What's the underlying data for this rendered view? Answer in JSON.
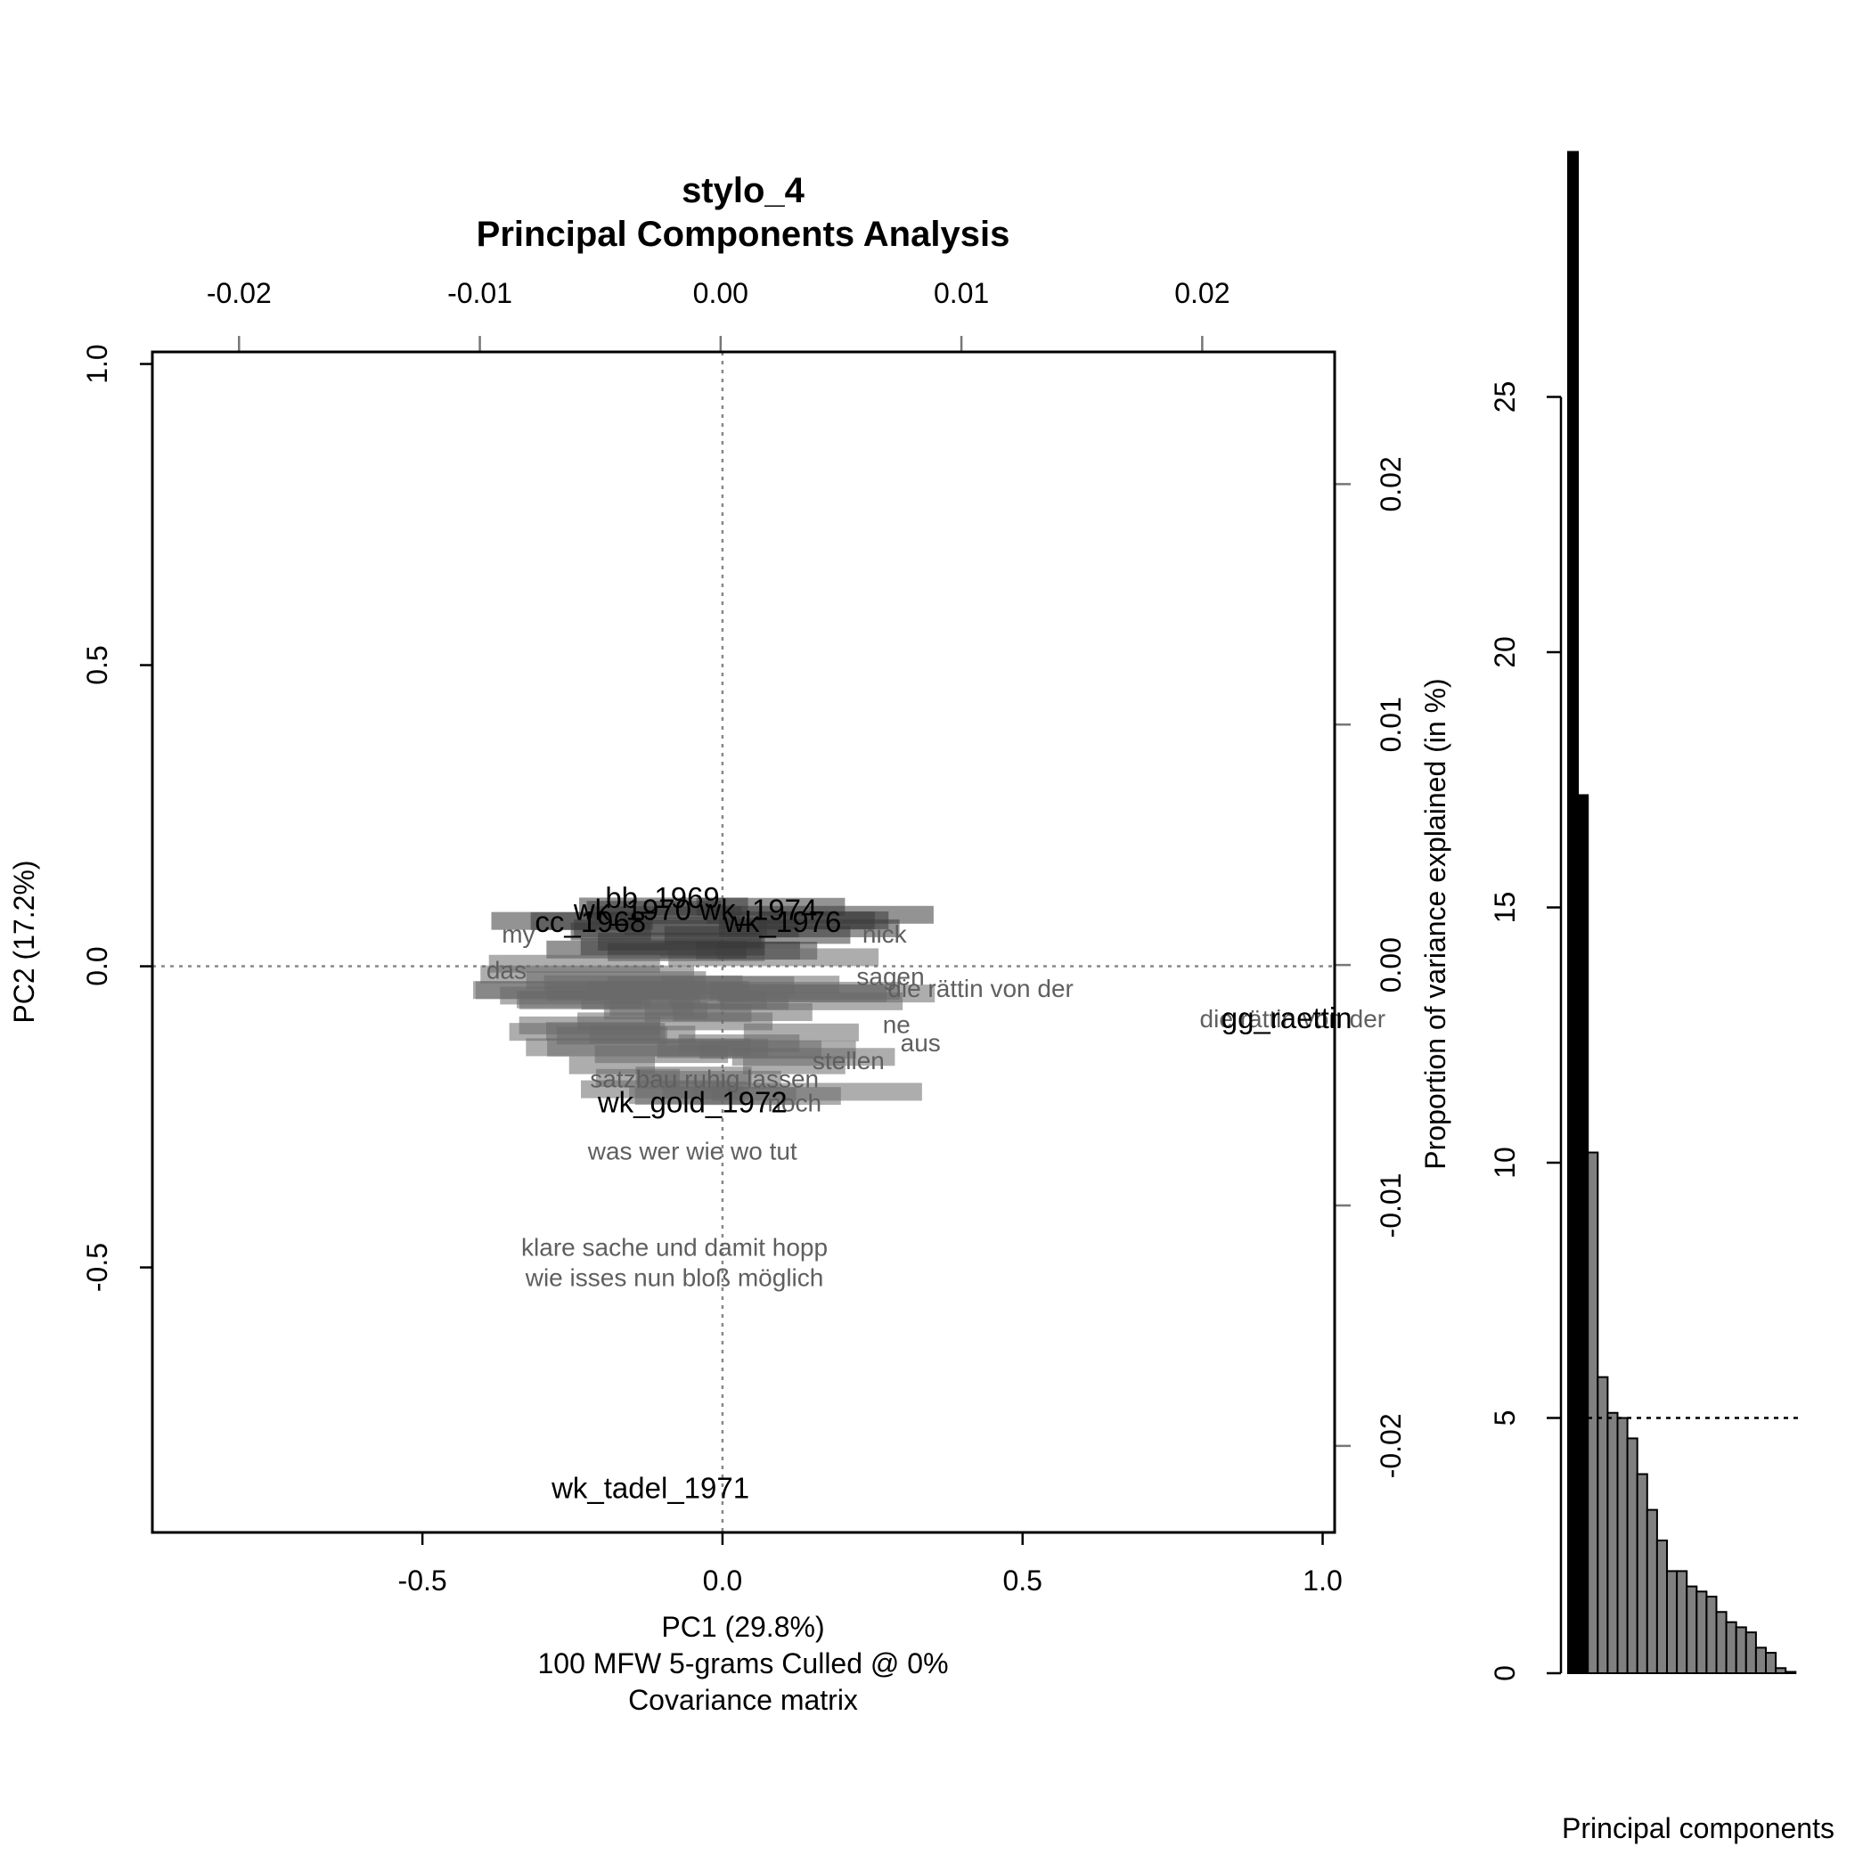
{
  "chart_data": [
    {
      "type": "scatter",
      "title": "stylo_4",
      "subtitle": "Principal Components Analysis",
      "xlabel": "PC1 (29.8%)",
      "ylabel": "PC2 (17.2%)",
      "caption_lines": [
        "100 MFW 5-grams Culled @ 0%",
        "Covariance matrix"
      ],
      "xlim": [
        -0.95,
        1.02
      ],
      "ylim": [
        -0.94,
        1.02
      ],
      "x_ticks": [
        "-0.5",
        "0.0",
        "0.5",
        "1.0"
      ],
      "x_tick_values": [
        -0.5,
        0.0,
        0.5,
        1.0
      ],
      "y_ticks": [
        "-0.5",
        "0.0",
        "0.5",
        "1.0"
      ],
      "y_tick_values": [
        -0.5,
        0.0,
        0.5,
        1.0
      ],
      "loadings_axis_top_ticks": [
        "-0.02",
        "-0.01",
        "0.00",
        "0.01",
        "0.02"
      ],
      "loadings_axis_top_values": [
        -0.02,
        -0.01,
        0.0,
        0.01,
        0.02
      ],
      "loadings_axis_right_ticks": [
        "-0.02",
        "-0.01",
        "0.00",
        "0.01",
        "0.02"
      ],
      "loadings_axis_right_values": [
        -0.02,
        -0.01,
        0.0,
        0.01,
        0.02
      ],
      "loadings_lim": [
        -0.0236,
        0.0255
      ],
      "reference_lines": {
        "x": 0,
        "y": 0
      },
      "documents": [
        {
          "label": "wk_gold_1972",
          "x": -0.05,
          "y": -0.23
        },
        {
          "label": "wk_tadel_1971",
          "x": -0.12,
          "y": -0.87
        },
        {
          "label": "gg_raettin",
          "x": 0.94,
          "y": -0.09
        },
        {
          "label": "bb_1969",
          "x": -0.1,
          "y": 0.11
        },
        {
          "label": "wk_1976",
          "x": 0.1,
          "y": 0.07
        },
        {
          "label": "cc_1968",
          "x": -0.22,
          "y": 0.07
        },
        {
          "label": "wk_1970",
          "x": -0.15,
          "y": 0.09
        },
        {
          "label": "wk_1974",
          "x": 0.06,
          "y": 0.09
        }
      ],
      "words": [
        {
          "label": "was wer wie wo tut",
          "x": -0.05,
          "y": -0.31
        },
        {
          "label": "klare sache und damit hopp",
          "x": -0.08,
          "y": -0.47
        },
        {
          "label": "wie isses nun bloß möglich",
          "x": -0.08,
          "y": -0.52
        },
        {
          "label": "die rättin von der",
          "x": 0.43,
          "y": -0.04
        },
        {
          "label": "die rättin von der",
          "x": 0.95,
          "y": -0.09
        },
        {
          "label": "my",
          "x": -0.34,
          "y": 0.05
        },
        {
          "label": "nick",
          "x": 0.27,
          "y": 0.05
        },
        {
          "label": "das",
          "x": -0.36,
          "y": -0.01
        },
        {
          "label": "ne",
          "x": 0.29,
          "y": -0.1
        },
        {
          "label": "aus",
          "x": 0.33,
          "y": -0.13
        },
        {
          "label": "stellen",
          "x": 0.21,
          "y": -0.16
        },
        {
          "label": "noch",
          "x": 0.12,
          "y": -0.23
        },
        {
          "label": "sagen",
          "x": 0.28,
          "y": -0.02
        },
        {
          "label": "satzbau ruhig lassen",
          "x": -0.03,
          "y": -0.19
        }
      ]
    },
    {
      "type": "bar",
      "ylabel": "Proportion of variance explained (in %)",
      "xlabel": "Principal components",
      "ylim": [
        0,
        30
      ],
      "y_ticks": [
        "0",
        "5",
        "10",
        "15",
        "20",
        "25"
      ],
      "y_tick_values": [
        0,
        5,
        10,
        15,
        20,
        25
      ],
      "threshold": 5,
      "values": [
        29.8,
        17.2,
        10.2,
        5.8,
        5.1,
        5.0,
        4.6,
        3.9,
        3.2,
        2.6,
        2.0,
        2.0,
        1.7,
        1.6,
        1.5,
        1.2,
        1.0,
        0.9,
        0.8,
        0.5,
        0.4,
        0.1,
        0.0
      ],
      "colors": {
        "major": "#000000",
        "minor": "#808080"
      }
    }
  ]
}
